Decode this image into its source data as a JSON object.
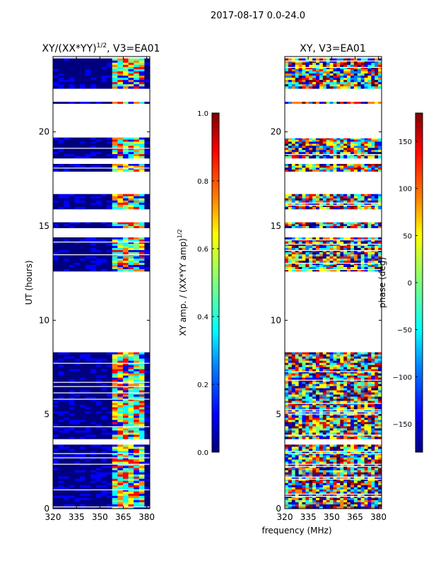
{
  "figure": {
    "suptitle": "2017-08-17 0.0-24.0",
    "xlabel": "frequency (MHz)"
  },
  "colors": {
    "navy": "#00007f",
    "blue": "#0000ff",
    "azure": "#0080ff",
    "cyan": "#00ffff",
    "green": "#7fff7f",
    "yellow": "#ffff00",
    "orange": "#ff8000",
    "red": "#ff0000",
    "darkred": "#7f0000"
  },
  "chart_data": [
    {
      "type": "heatmap",
      "title_main": "XY/(XX*YY)",
      "title_sup": "1/2",
      "title_tail": ", V3=EA01",
      "ylabel": "UT (hours)",
      "x_range": [
        320,
        382
      ],
      "y_range": [
        0,
        24
      ],
      "xticks": [
        320,
        335,
        350,
        365,
        380
      ],
      "yticks": [
        0,
        5,
        10,
        15,
        20
      ],
      "colorbar": {
        "label_main": "XY amp. / (XX*YY amp)",
        "label_sup": "1/2",
        "range": [
          0.0,
          1.0
        ],
        "ticks": [
          "0.0",
          "0.2",
          "0.4",
          "0.6",
          "0.8",
          "1.0"
        ]
      },
      "data_bands_hours": [
        [
          0.0,
          3.4
        ],
        [
          3.7,
          8.3
        ],
        [
          12.6,
          14.4
        ],
        [
          14.9,
          15.2
        ],
        [
          15.9,
          16.7
        ],
        [
          17.9,
          18.3
        ],
        [
          18.6,
          19.7
        ],
        [
          21.5,
          21.6
        ],
        [
          22.3,
          23.9
        ]
      ],
      "band_freq_MHz": [
        359,
        380
      ]
    },
    {
      "type": "heatmap",
      "title_main": "XY, V3=EA01",
      "ylabel": "",
      "x_range": [
        320,
        382
      ],
      "y_range": [
        0,
        24
      ],
      "xticks": [
        320,
        335,
        350,
        365,
        380
      ],
      "yticks": [
        0,
        5,
        10,
        15,
        20
      ],
      "colorbar": {
        "label_main": "phase (deg)",
        "range": [
          -180,
          180
        ],
        "ticks": [
          "150",
          "100",
          "50",
          "0",
          "−50",
          "−100",
          "−150"
        ],
        "tick_values": [
          150,
          100,
          50,
          0,
          -50,
          -100,
          -150
        ]
      },
      "data_bands_hours": [
        [
          0.0,
          3.4
        ],
        [
          3.7,
          8.3
        ],
        [
          12.6,
          14.4
        ],
        [
          14.9,
          15.2
        ],
        [
          15.9,
          16.7
        ],
        [
          17.9,
          18.3
        ],
        [
          18.6,
          19.7
        ],
        [
          21.5,
          21.6
        ],
        [
          22.3,
          23.9
        ]
      ]
    }
  ]
}
